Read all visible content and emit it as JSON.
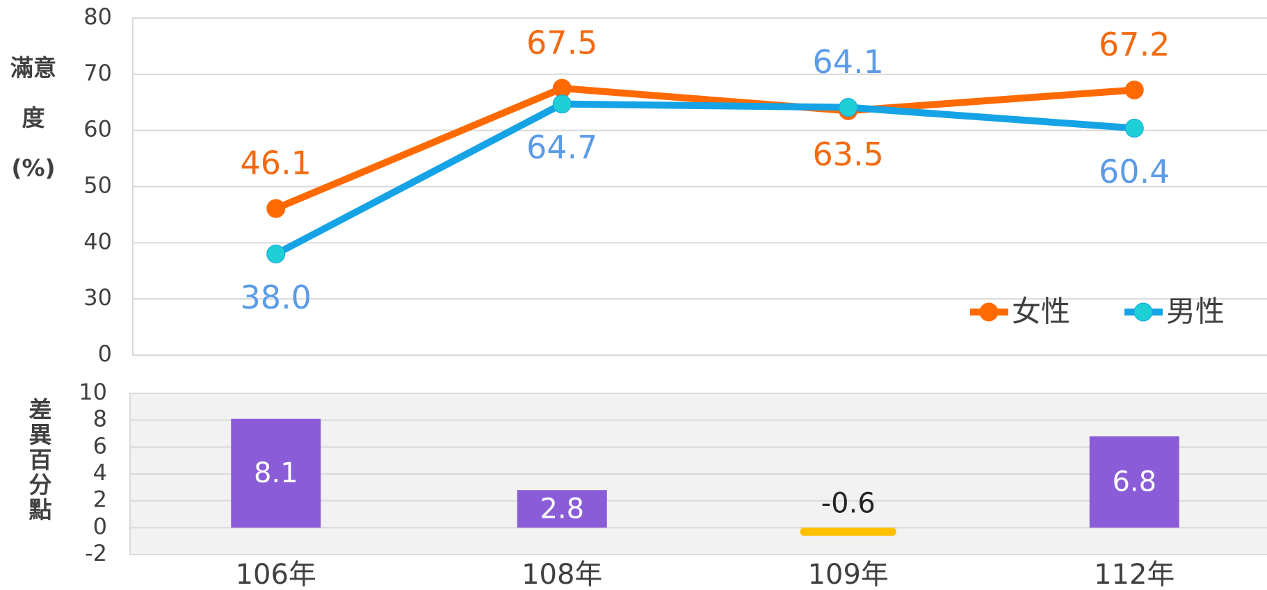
{
  "chart_data": [
    {
      "type": "line",
      "ylabel": "滿意度(%)",
      "categories": [
        "106年",
        "108年",
        "109年",
        "112年"
      ],
      "series": [
        {
          "name": "女性",
          "color": "#ff6a00",
          "label_color": "#f26a10",
          "values": [
            46.1,
            67.5,
            63.5,
            67.2
          ],
          "value_labels": [
            "46.1",
            "67.5",
            "63.5",
            "67.2"
          ]
        },
        {
          "name": "男性",
          "color": "#16a3e6",
          "marker_color": "#1ecfd6",
          "label_color": "#5b9be8",
          "values": [
            38.0,
            64.7,
            64.1,
            60.4
          ],
          "value_labels": [
            "38.0",
            "64.7",
            "64.1",
            "60.4"
          ]
        }
      ],
      "ylim": [
        20,
        80
      ],
      "yticks": [
        30,
        40,
        50,
        60,
        70,
        80
      ],
      "y_bottom_label": "0",
      "grid": true,
      "legend": "lower right"
    },
    {
      "type": "bar",
      "ylabel": "差異百分點",
      "categories": [
        "106年",
        "108年",
        "109年",
        "112年"
      ],
      "values": [
        8.1,
        2.8,
        -0.6,
        6.8
      ],
      "color": "#8a5cd8",
      "negative_color": "#ffc000",
      "ylim": [
        -2,
        10
      ],
      "yticks": [
        -2,
        0,
        2,
        4,
        6,
        8,
        10
      ],
      "grid": true
    }
  ]
}
